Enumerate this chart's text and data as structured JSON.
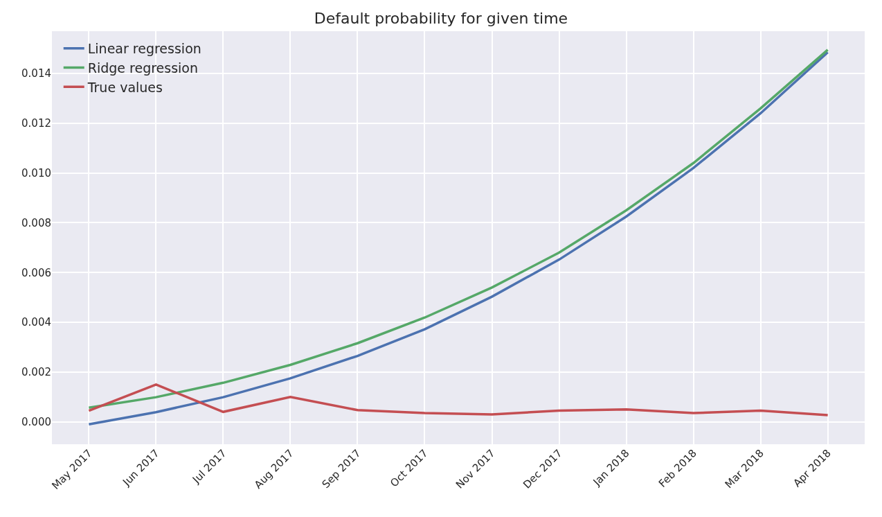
{
  "chart_data": {
    "type": "line",
    "title": "Default probability for given time",
    "categories": [
      "May 2017",
      "Jun 2017",
      "Jul 2017",
      "Aug 2017",
      "Sep 2017",
      "Oct 2017",
      "Nov 2017",
      "Dec 2017",
      "Jan 2018",
      "Feb 2018",
      "Mar 2018",
      "Apr 2018"
    ],
    "series": [
      {
        "name": "Linear regression",
        "color": "#4c72b0",
        "values": [
          -0.0001,
          0.00039,
          0.00099,
          0.00175,
          0.00265,
          0.00372,
          0.00503,
          0.00652,
          0.00825,
          0.0102,
          0.0124,
          0.01485
        ]
      },
      {
        "name": "Ridge regression",
        "color": "#55a868",
        "values": [
          0.00057,
          0.00099,
          0.00157,
          0.00229,
          0.00316,
          0.00419,
          0.0054,
          0.0068,
          0.0085,
          0.0104,
          0.0126,
          0.01495
        ]
      },
      {
        "name": "True values",
        "color": "#c44e52",
        "values": [
          0.00045,
          0.0015,
          0.0004,
          0.001,
          0.00047,
          0.00035,
          0.0003,
          0.00045,
          0.0005,
          0.00035,
          0.00045,
          0.00027
        ]
      }
    ],
    "ylim": [
      -0.0009,
      0.0157
    ],
    "yticks": [
      {
        "value": 0,
        "label": "0.000"
      },
      {
        "value": 0.002,
        "label": "0.002"
      },
      {
        "value": 0.004,
        "label": "0.004"
      },
      {
        "value": 0.006,
        "label": "0.006"
      },
      {
        "value": 0.008,
        "label": "0.008"
      },
      {
        "value": 0.01,
        "label": "0.010"
      },
      {
        "value": 0.012,
        "label": "0.012"
      },
      {
        "value": 0.014,
        "label": "0.014"
      }
    ],
    "grid": true,
    "legend": "top left",
    "marker": "none",
    "line_style": "solid"
  }
}
